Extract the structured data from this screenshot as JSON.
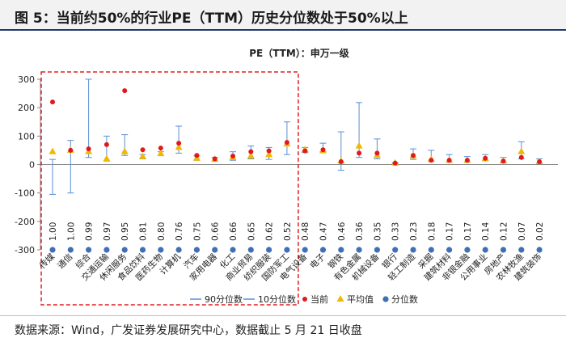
{
  "figure": {
    "title": "图 5：当前约50%的行业PE（TTM）历史分位数处于50%以上",
    "source": "数据来源：Wind，广发证券发展研究中心，数据截止 5 月 21 日收盘"
  },
  "colors": {
    "p90": "#5b8ed6",
    "p10": "#5b8ed6",
    "current": "#e01a1a",
    "average": "#f2b800",
    "percentile": "#3f6fb5",
    "highlight_box": "#e02020"
  },
  "chart_data": {
    "type": "scatter",
    "title": "PE（TTM）：申万一级",
    "ylim": [
      -300,
      300
    ],
    "yticks": [
      -300,
      -200,
      -100,
      0,
      100,
      200,
      300
    ],
    "highlight_count": 14,
    "categories": [
      "传媒",
      "通信",
      "综合",
      "交通运输",
      "休闲服务",
      "食品饮料",
      "医药生物",
      "计算机",
      "汽车",
      "家用电器",
      "化工",
      "商业贸易",
      "纺织服装",
      "国防军工",
      "电气设备",
      "电子",
      "钢铁",
      "有色金属",
      "机械设备",
      "银行",
      "轻工制造",
      "采掘",
      "建筑材料",
      "非银金融",
      "公用事业",
      "房地产",
      "农林牧渔",
      "建筑装饰"
    ],
    "p90": [
      18,
      85,
      300,
      100,
      105,
      35,
      45,
      135,
      30,
      25,
      45,
      65,
      60,
      150,
      60,
      75,
      115,
      218,
      90,
      6,
      55,
      50,
      35,
      28,
      35,
      25,
      80,
      20
    ],
    "p10": [
      -105,
      -100,
      25,
      12,
      32,
      20,
      32,
      40,
      15,
      12,
      15,
      20,
      18,
      35,
      42,
      45,
      -20,
      25,
      20,
      4,
      18,
      12,
      8,
      8,
      15,
      8,
      20,
      5
    ],
    "current": [
      220,
      50,
      55,
      70,
      260,
      52,
      58,
      75,
      32,
      20,
      30,
      45,
      48,
      78,
      48,
      52,
      10,
      40,
      40,
      5,
      32,
      15,
      15,
      15,
      22,
      12,
      25,
      10
    ],
    "average": [
      45,
      50,
      45,
      20,
      45,
      28,
      38,
      60,
      22,
      18,
      25,
      30,
      35,
      72,
      52,
      48,
      12,
      65,
      32,
      5,
      30,
      18,
      15,
      15,
      20,
      12,
      45,
      10
    ],
    "percentile": [
      1.0,
      1.0,
      0.99,
      0.97,
      0.95,
      0.81,
      0.8,
      0.76,
      0.75,
      0.66,
      0.66,
      0.65,
      0.62,
      0.52,
      0.48,
      0.47,
      0.46,
      0.36,
      0.35,
      0.33,
      0.23,
      0.18,
      0.17,
      0.17,
      0.14,
      0.12,
      0.07,
      0.02
    ],
    "percentile_labels": [
      "1.00",
      "1.00",
      "0.99",
      "0.97",
      "0.95",
      "0.81",
      "0.80",
      "0.76",
      "0.75",
      "0.66",
      "0.66",
      "0.65",
      "0.62",
      "0.52",
      "0.48",
      "0.47",
      "0.46",
      "0.36",
      "0.35",
      "0.33",
      "0.23",
      "0.18",
      "0.17",
      "0.17",
      "0.14",
      "0.12",
      "0.07",
      "0.02"
    ],
    "percentile_marker_value": -300,
    "legend": [
      "90分位数",
      "10分位数",
      "当前",
      "平均值",
      "分位数"
    ]
  }
}
